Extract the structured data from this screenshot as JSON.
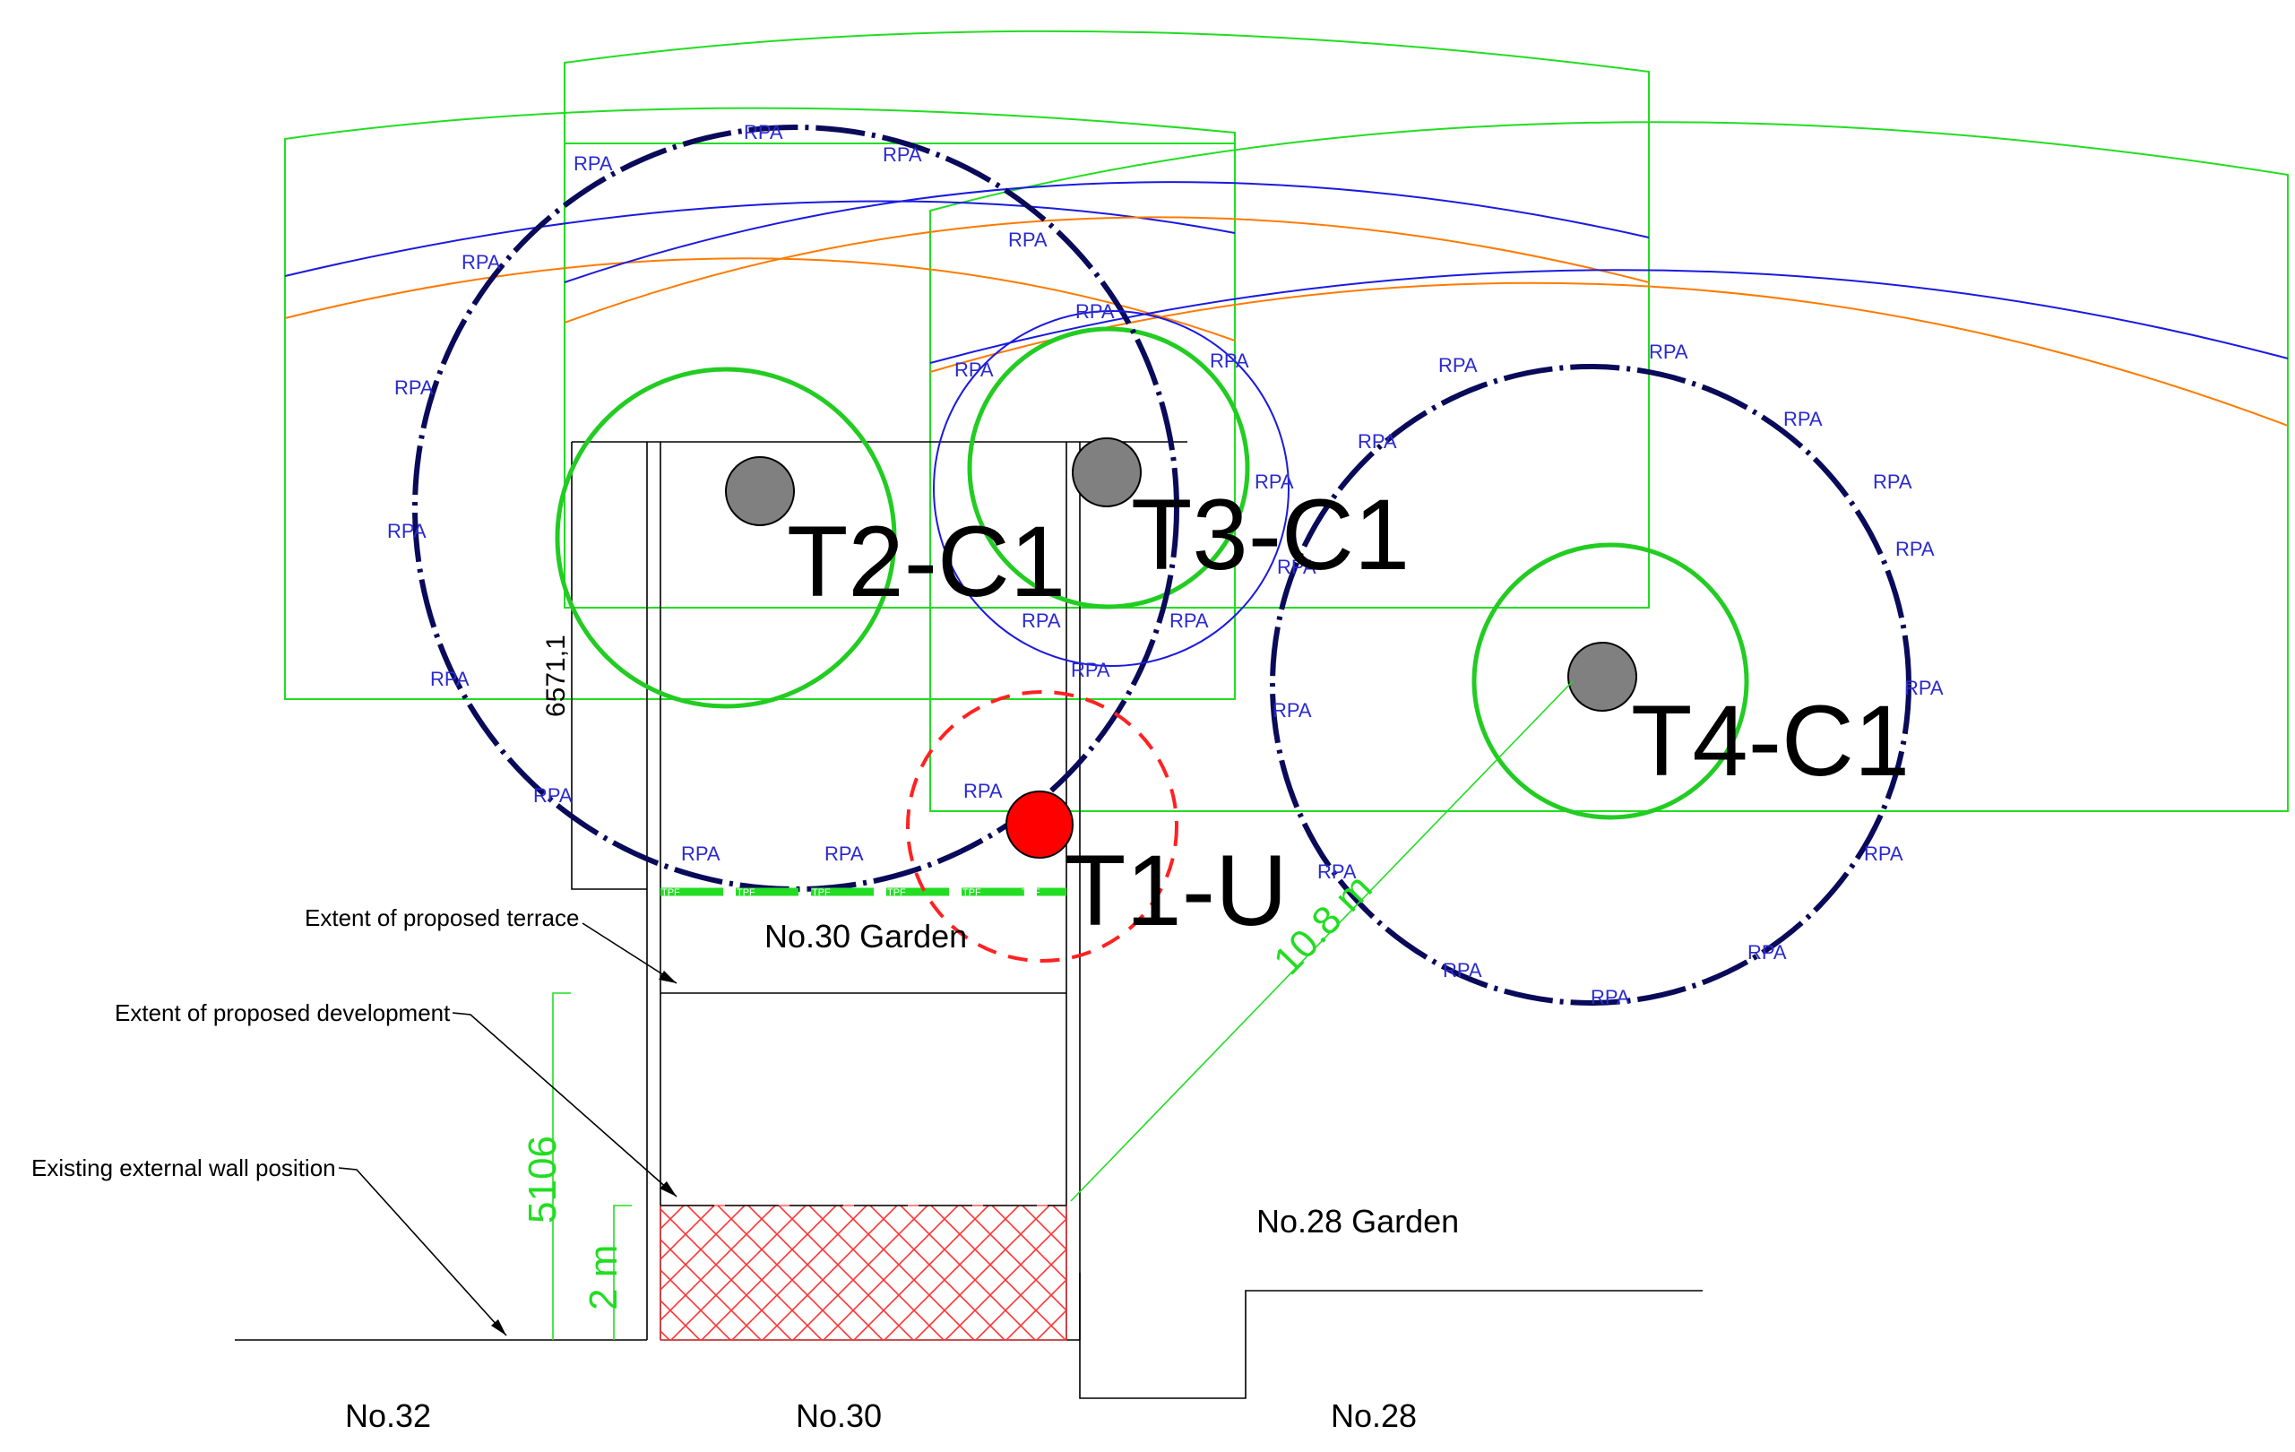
{
  "trees": [
    {
      "id": "T2-C1",
      "label": "T2-C1",
      "category": "C1"
    },
    {
      "id": "T3-C1",
      "label": "T3-C1",
      "category": "C1"
    },
    {
      "id": "T4-C1",
      "label": "T4-C1",
      "category": "C1"
    },
    {
      "id": "T1-U",
      "label": "T1-U",
      "category": "U"
    }
  ],
  "rpa_label": "RPA",
  "tpf_label": "TPF",
  "annotations": {
    "terrace": "Extent of proposed terrace",
    "development": "Extent of proposed development",
    "wall": "Existing external wall position"
  },
  "gardens": {
    "no30": "No.30 Garden",
    "no28": "No.28 Garden"
  },
  "properties": {
    "no32": "No.32",
    "no30": "No.30",
    "no28": "No.28"
  },
  "dimensions": {
    "d6571": "6571,1",
    "d5106": "5106",
    "d2m": "2 m",
    "d10_8m": "10.8 m"
  },
  "colors": {
    "crown": "#22cc22",
    "rpa_line": "#0a0a5a",
    "rpa_text": "#2a2ad0",
    "shade_blue": "#1a1ae0",
    "shade_orange": "#ff7a00",
    "shade_green": "#22dd22",
    "tree_trunk": "#808080",
    "unsuitable_tree": "#ff0000",
    "hatch": "#ff3333",
    "tpf": "#22dd22"
  }
}
